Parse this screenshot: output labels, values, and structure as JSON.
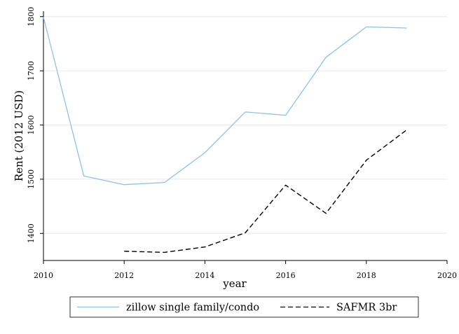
{
  "chart_data": {
    "type": "line",
    "xlabel": "year",
    "ylabel": "Rent (2012 USD)",
    "xlim": [
      2010,
      2020
    ],
    "ylim": [
      1350,
      1810
    ],
    "xticks": [
      2010,
      2012,
      2014,
      2016,
      2018,
      2020
    ],
    "yticks": [
      1400,
      1500,
      1600,
      1700,
      1800
    ],
    "grid": "horizontal",
    "legend_position": "bottom",
    "series": [
      {
        "name": "zillow single family/condo",
        "color": "#8ec2e6",
        "style": "solid",
        "x": [
          2010,
          2011,
          2012,
          2013,
          2014,
          2015,
          2016,
          2017,
          2018,
          2019
        ],
        "y": [
          1799,
          1506,
          1490,
          1494,
          1549,
          1624,
          1618,
          1725,
          1781,
          1779
        ]
      },
      {
        "name": "SAFMR 3br",
        "color": "#000000",
        "style": "dashed",
        "x": [
          2012,
          2013,
          2014,
          2015,
          2016,
          2017,
          2018,
          2019
        ],
        "y": [
          1367,
          1365,
          1375,
          1401,
          1489,
          1437,
          1535,
          1591
        ]
      }
    ]
  }
}
